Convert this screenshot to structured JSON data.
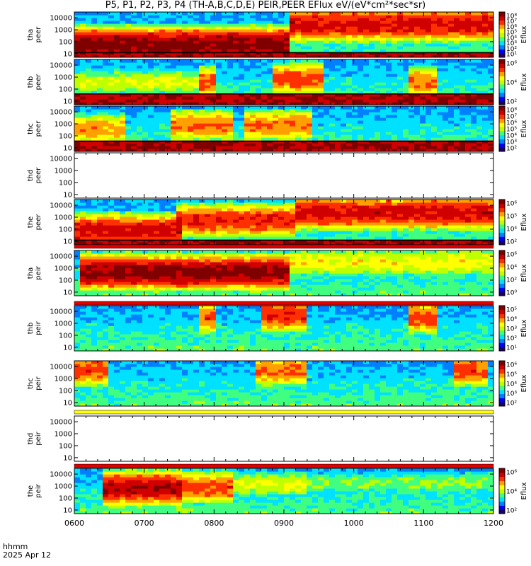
{
  "title": "P5, P1, P2, P3, P4 (TH-A,B,C,D,E) PEIR,PEER EFlux eV/(eV*cm²*sec*sr)",
  "footer": {
    "line1": "hhmm",
    "line2": "2025 Apr 12"
  },
  "colors": {
    "colormap": [
      "#1a0066",
      "#0000ff",
      "#0080ff",
      "#00e0ff",
      "#40ff80",
      "#c0ff00",
      "#ffff00",
      "#ffa000",
      "#ff3000",
      "#d00000",
      "#800000"
    ],
    "gap_red": "#e00000",
    "gap_yellow": "#ffff00",
    "axis": "#000000"
  },
  "chart_data": {
    "type": "heatmap",
    "x_tick_labels": [
      "0600",
      "0700",
      "0800",
      "0900",
      "1000",
      "1100",
      "1200"
    ],
    "x_ticks_hours": [
      6,
      7,
      8,
      9,
      10,
      11,
      12
    ],
    "x_range_hours": [
      6,
      12
    ],
    "y_scale": "log",
    "y_tick_labels": [
      "10",
      "100",
      "1000",
      "10000"
    ],
    "y_tick_values": [
      10,
      100,
      1000,
      10000
    ],
    "y_range_eV": [
      5,
      30000
    ],
    "colorbar_label": "Eflux",
    "panels": [
      {
        "ylabel": [
          "tha",
          "peer"
        ],
        "probe": "a",
        "species": "electron",
        "has_data": true,
        "colorbar_ticks": [
          "10⁸",
          "10⁷",
          "10⁶",
          "10⁵",
          "10⁴",
          "10³",
          "10²",
          "10¹"
        ],
        "colorbar_range_log": [
          1,
          8
        ],
        "low_energy_cutoff_eV": 12,
        "spectrum_features": [
          {
            "t_start": 6.0,
            "t_end": 9.05,
            "peak_energy_eV": 60,
            "peak_level": 1.0
          },
          {
            "t_start": 9.05,
            "t_end": 12.0,
            "peak_energy_eV": 3000,
            "peak_level": 0.9
          }
        ]
      },
      {
        "ylabel": [
          "thb",
          "peer"
        ],
        "probe": "b",
        "species": "electron",
        "has_data": true,
        "colorbar_ticks": [
          "10⁶",
          "10⁴",
          "10²"
        ],
        "colorbar_range_log": [
          1,
          6
        ],
        "low_energy_cutoff_eV": 40,
        "spectrum_features": [
          {
            "t_start": 6.0,
            "t_end": 7.8,
            "peak_energy_eV": 400,
            "peak_level": 0.55
          },
          {
            "t_start": 7.8,
            "t_end": 8.05,
            "peak_energy_eV": 400,
            "peak_level": 0.8
          },
          {
            "t_start": 8.8,
            "t_end": 9.6,
            "peak_energy_eV": 800,
            "peak_level": 0.8
          },
          {
            "t_start": 10.8,
            "t_end": 11.2,
            "peak_energy_eV": 400,
            "peak_level": 0.75
          }
        ]
      },
      {
        "ylabel": [
          "thc",
          "peer"
        ],
        "probe": "c",
        "species": "electron",
        "has_data": true,
        "colorbar_ticks": [
          "10⁸",
          "10⁷",
          "10⁶",
          "10⁵",
          "10⁴",
          "10³",
          "10²"
        ],
        "colorbar_range_log": [
          2,
          8
        ],
        "low_energy_cutoff_eV": 35,
        "spectrum_features": [
          {
            "t_start": 6.0,
            "t_end": 6.7,
            "peak_energy_eV": 400,
            "peak_level": 0.7
          },
          {
            "t_start": 7.4,
            "t_end": 8.3,
            "peak_energy_eV": 800,
            "peak_level": 0.75
          },
          {
            "t_start": 8.4,
            "t_end": 9.4,
            "peak_energy_eV": 800,
            "peak_level": 0.75
          }
        ]
      },
      {
        "ylabel": [
          "thd",
          "peer"
        ],
        "probe": "d",
        "species": "electron",
        "has_data": false
      },
      {
        "ylabel": [
          "the",
          "peer"
        ],
        "probe": "e",
        "species": "electron",
        "has_data": true,
        "colorbar_ticks": [
          "10⁶",
          "10⁵",
          "10⁴",
          "10²"
        ],
        "colorbar_range_log": [
          2,
          6
        ],
        "low_energy_cutoff_eV": 12,
        "spectrum_features": [
          {
            "t_start": 6.0,
            "t_end": 7.5,
            "peak_energy_eV": 80,
            "peak_level": 0.9
          },
          {
            "t_start": 7.5,
            "t_end": 9.2,
            "peak_energy_eV": 600,
            "peak_level": 0.85
          },
          {
            "t_start": 9.2,
            "t_end": 12.0,
            "peak_energy_eV": 2500,
            "peak_level": 0.9
          }
        ]
      },
      {
        "ylabel": [
          "tha",
          "peir"
        ],
        "probe": "a",
        "species": "ion",
        "has_data": true,
        "colorbar_ticks": [
          "10⁶",
          "10⁴",
          "10²",
          "10⁰"
        ],
        "colorbar_range_log": [
          0,
          7
        ],
        "low_energy_cutoff_eV": 0,
        "spectrum_features": [
          {
            "t_start": 6.1,
            "t_end": 9.1,
            "peak_energy_eV": 500,
            "peak_level": 1.0
          },
          {
            "t_start": 9.1,
            "t_end": 12.0,
            "peak_energy_eV": 3000,
            "peak_level": 0.6
          }
        ]
      },
      {
        "ylabel": [
          "thb",
          "peir"
        ],
        "probe": "b",
        "species": "ion",
        "has_data": true,
        "colorbar_ticks": [
          "10⁵",
          "10⁴",
          "10³",
          "10²",
          "10¹"
        ],
        "colorbar_range_log": [
          1,
          6
        ],
        "low_energy_cutoff_eV": 0,
        "spectrum_features": [
          {
            "t_start": 7.8,
            "t_end": 8.05,
            "peak_energy_eV": 3000,
            "peak_level": 0.8
          },
          {
            "t_start": 8.7,
            "t_end": 9.3,
            "peak_energy_eV": 5000,
            "peak_level": 0.85
          },
          {
            "t_start": 10.8,
            "t_end": 11.2,
            "peak_energy_eV": 3000,
            "peak_level": 0.8
          }
        ]
      },
      {
        "ylabel": [
          "thc",
          "peir"
        ],
        "probe": "c",
        "species": "ion",
        "has_data": true,
        "colorbar_ticks": [
          "10⁶",
          "10⁵",
          "10⁴",
          "10³",
          "10²"
        ],
        "colorbar_range_log": [
          1,
          6
        ],
        "low_energy_cutoff_eV": 0,
        "spectrum_features": [
          {
            "t_start": 6.0,
            "t_end": 6.5,
            "peak_energy_eV": 5000,
            "peak_level": 0.8
          },
          {
            "t_start": 8.6,
            "t_end": 9.3,
            "peak_energy_eV": 5000,
            "peak_level": 0.75
          },
          {
            "t_start": 11.4,
            "t_end": 11.9,
            "peak_energy_eV": 5000,
            "peak_level": 0.8
          }
        ]
      },
      {
        "ylabel": [
          "thd",
          "peir"
        ],
        "probe": "d",
        "species": "ion",
        "has_data": false
      },
      {
        "ylabel": [
          "the",
          "peir"
        ],
        "probe": "e",
        "species": "ion",
        "has_data": true,
        "colorbar_ticks": [
          "10⁶",
          "10⁴",
          "10²"
        ],
        "colorbar_range_log": [
          1,
          6
        ],
        "low_energy_cutoff_eV": 0,
        "spectrum_features": [
          {
            "t_start": 6.4,
            "t_end": 7.5,
            "peak_energy_eV": 700,
            "peak_level": 0.95
          },
          {
            "t_start": 7.5,
            "t_end": 8.3,
            "peak_energy_eV": 800,
            "peak_level": 0.8
          },
          {
            "t_start": 8.3,
            "t_end": 9.3,
            "peak_energy_eV": 1500,
            "peak_level": 0.55
          },
          {
            "t_start": 9.3,
            "t_end": 12.0,
            "peak_energy_eV": 2000,
            "peak_level": 0.45
          }
        ]
      }
    ]
  }
}
